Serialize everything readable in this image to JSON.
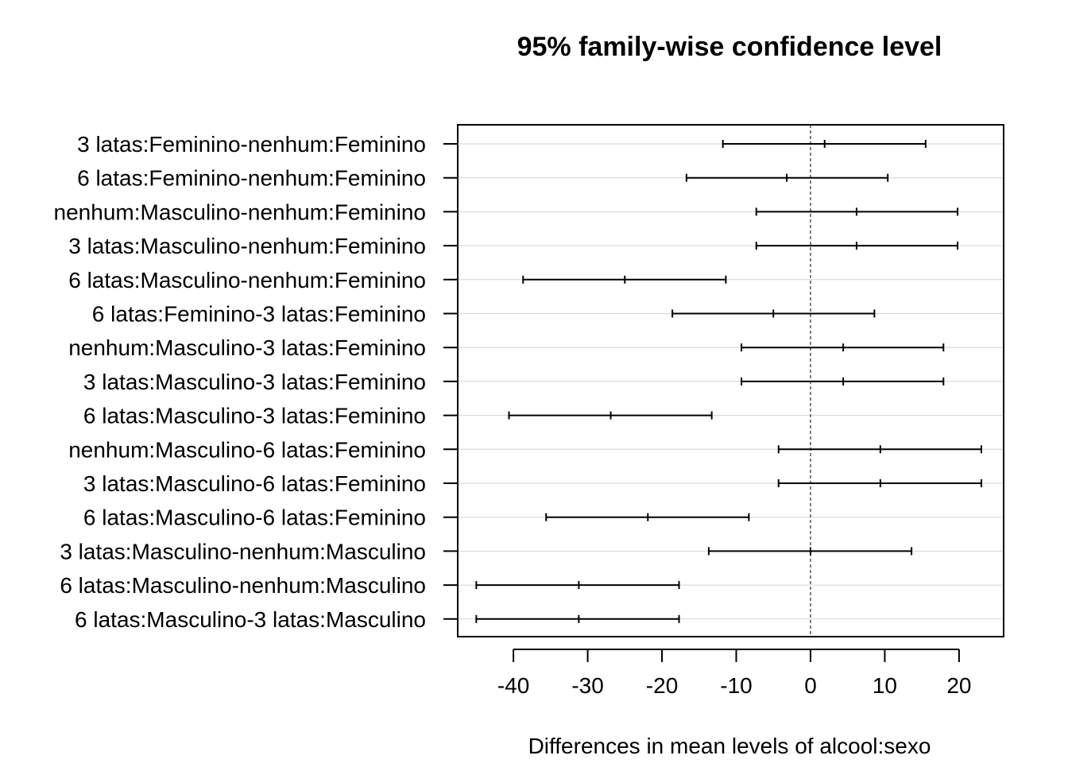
{
  "chart_data": {
    "type": "interval",
    "title": "95% family-wise confidence level",
    "xlabel": "Differences in mean levels of alcool:sexo",
    "ylabel": "",
    "xlim": [
      -47.5,
      26
    ],
    "x_ticks": [
      -40,
      -30,
      -20,
      -10,
      0,
      10,
      20
    ],
    "x_tick_labels": [
      "-40",
      "-30",
      "-20",
      "-10",
      "0",
      "10",
      "20"
    ],
    "reference_line": 0,
    "grid": "horizontal",
    "series": [
      {
        "label": "3 latas:Feminino-nenhum:Feminino",
        "lwr": -11.8,
        "diff": 1.9,
        "upr": 15.5
      },
      {
        "label": "6 latas:Feminino-nenhum:Feminino",
        "lwr": -16.7,
        "diff": -3.2,
        "upr": 10.4
      },
      {
        "label": "nenhum:Masculino-nenhum:Feminino",
        "lwr": -7.3,
        "diff": 6.2,
        "upr": 19.8
      },
      {
        "label": "3 latas:Masculino-nenhum:Feminino",
        "lwr": -7.3,
        "diff": 6.2,
        "upr": 19.8
      },
      {
        "label": "6 latas:Masculino-nenhum:Feminino",
        "lwr": -38.7,
        "diff": -25.0,
        "upr": -11.4
      },
      {
        "label": "6 latas:Feminino-3 latas:Feminino",
        "lwr": -18.6,
        "diff": -5.0,
        "upr": 8.6
      },
      {
        "label": "nenhum:Masculino-3 latas:Feminino",
        "lwr": -9.3,
        "diff": 4.4,
        "upr": 17.9
      },
      {
        "label": "3 latas:Masculino-3 latas:Feminino",
        "lwr": -9.3,
        "diff": 4.4,
        "upr": 17.9
      },
      {
        "label": "6 latas:Masculino-3 latas:Feminino",
        "lwr": -40.6,
        "diff": -26.9,
        "upr": -13.3
      },
      {
        "label": "nenhum:Masculino-6 latas:Feminino",
        "lwr": -4.3,
        "diff": 9.4,
        "upr": 23.0
      },
      {
        "label": "3 latas:Masculino-6 latas:Feminino",
        "lwr": -4.3,
        "diff": 9.4,
        "upr": 23.0
      },
      {
        "label": "6 latas:Masculino-6 latas:Feminino",
        "lwr": -35.6,
        "diff": -21.9,
        "upr": -8.3
      },
      {
        "label": "3 latas:Masculino-nenhum:Masculino",
        "lwr": -13.7,
        "diff": 0.0,
        "upr": 13.6
      },
      {
        "label": "6 latas:Masculino-nenhum:Masculino",
        "lwr": -45.0,
        "diff": -31.2,
        "upr": -17.7
      },
      {
        "label": "6 latas:Masculino-3 latas:Masculino",
        "lwr": -45.0,
        "diff": -31.2,
        "upr": -17.7
      }
    ]
  }
}
